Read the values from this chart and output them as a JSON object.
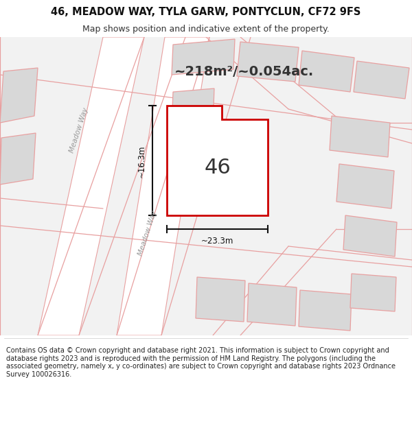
{
  "title": "46, MEADOW WAY, TYLA GARW, PONTYCLUN, CF72 9FS",
  "subtitle": "Map shows position and indicative extent of the property.",
  "footer": "Contains OS data © Crown copyright and database right 2021. This information is subject to Crown copyright and database rights 2023 and is reproduced with the permission of HM Land Registry. The polygons (including the associated geometry, namely x, y co-ordinates) are subject to Crown copyright and database rights 2023 Ordnance Survey 100026316.",
  "area_text": "~218m²/~0.054ac.",
  "plot_number": "46",
  "dim_width": "~23.3m",
  "dim_height": "~16.3m",
  "road_label": "Meadow Way",
  "bg_color": "#f0f0f0",
  "road_fill": "#ffffff",
  "road_edge": "#e8a0a0",
  "building_fill": "#d8d8d8",
  "building_edge": "#e8a0a0",
  "highlight_color": "#cc0000",
  "text_color": "#333333",
  "dim_color": "#111111"
}
